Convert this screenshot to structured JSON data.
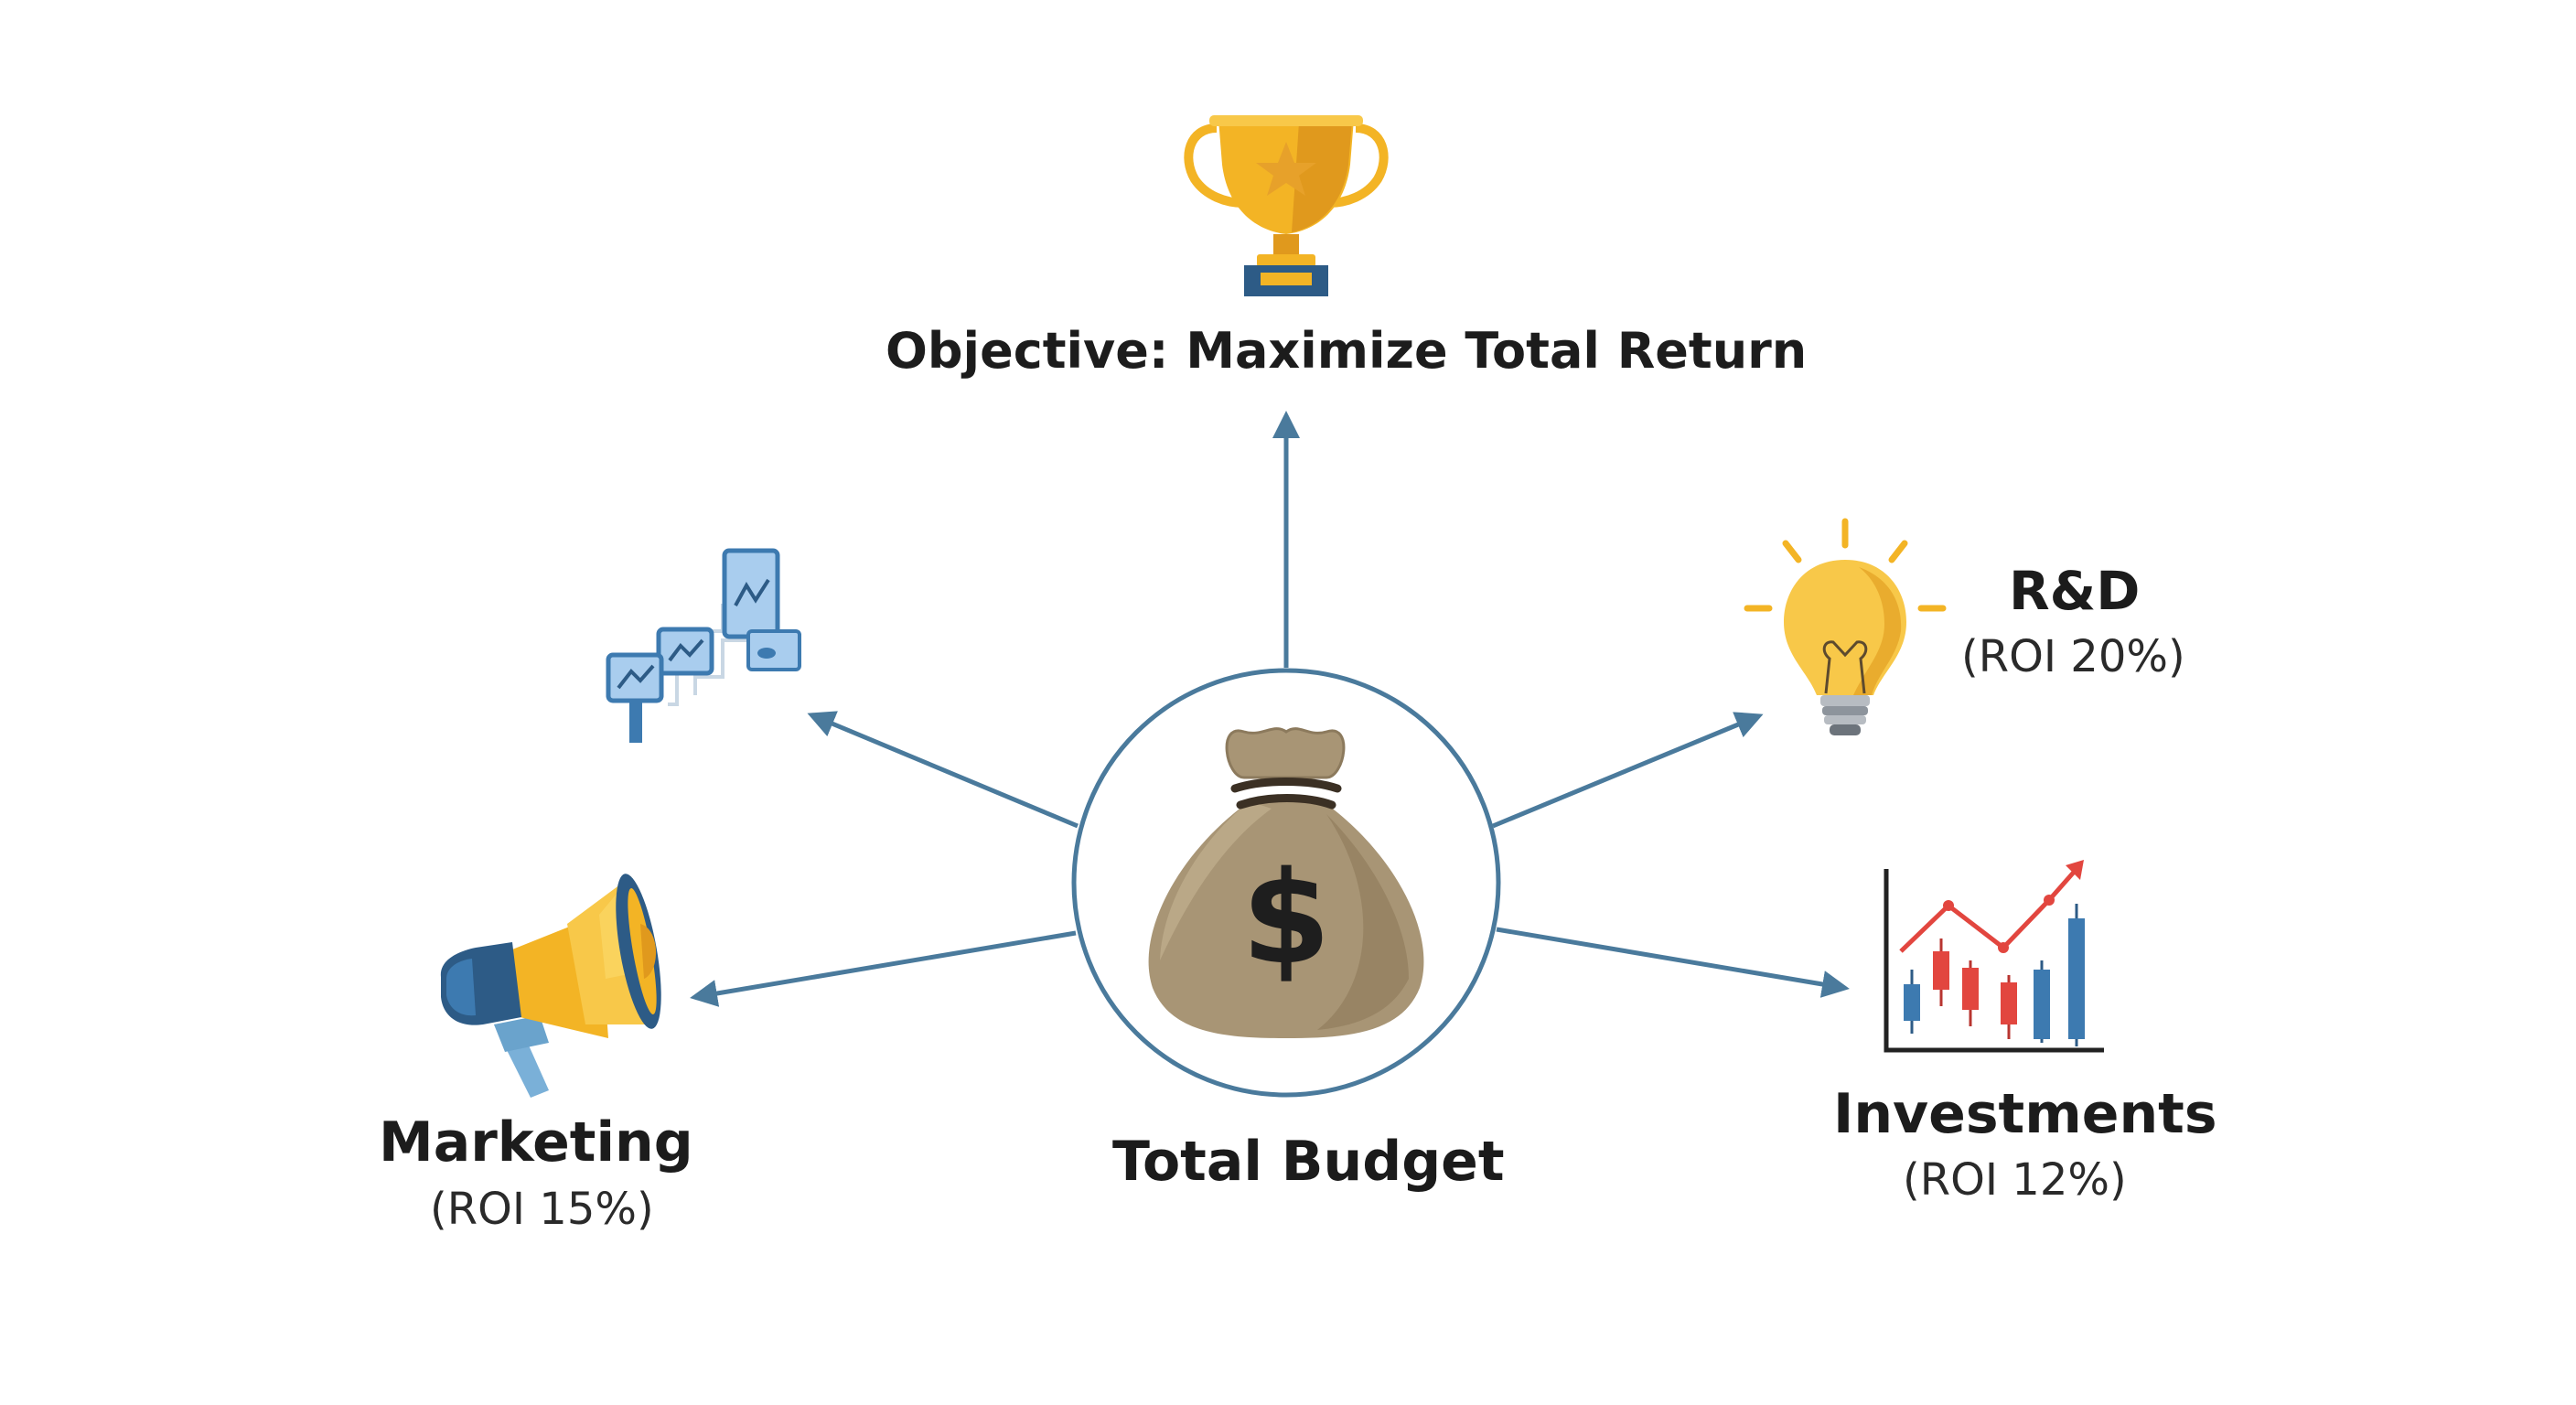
{
  "objective": {
    "label": "Objective: Maximize Total Return",
    "icon": "trophy-icon"
  },
  "center": {
    "label": "Total Budget",
    "icon": "money-bag-icon"
  },
  "allocations": [
    {
      "id": "marketing",
      "name": "Marketing",
      "roi": "(ROI 15%)",
      "icon": "megaphone-icon"
    },
    {
      "id": "rd",
      "name": "R&D",
      "roi": "(ROI 20%)",
      "icon": "lightbulb-icon"
    },
    {
      "id": "investments",
      "name": "Investments",
      "roi": "(ROI 12%)",
      "icon": "candlestick-chart-icon"
    }
  ],
  "unlabeled_branch": {
    "icon": "connected-charts-icon"
  },
  "colors": {
    "arrow": "#4a7a9c",
    "circle": "#4a7a9c",
    "gold": "#f3b425",
    "bag": "#a89575",
    "blue_icon": "#3d7ab0",
    "red": "#e2463f"
  }
}
